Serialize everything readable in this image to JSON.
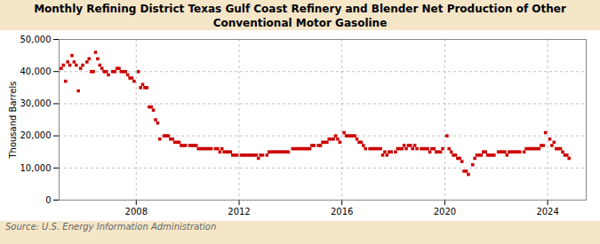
{
  "chart_data": {
    "type": "scatter",
    "title": "Monthly Refining District Texas Gulf Coast Refinery and Blender Net Production of Other\nConventional Motor Gasoline",
    "ylabel": "Thousand Barrels",
    "annotations": [
      "Source: U.S. Energy Information Administration"
    ],
    "color": "#cc0000",
    "marker": "square",
    "grid": true,
    "xlim": [
      2005.0,
      2025.5
    ],
    "xticks": [
      2008,
      2012,
      2016,
      2020,
      2024
    ],
    "ylim": [
      0,
      50000
    ],
    "yticks": [
      0,
      {
        "value": 10000,
        "label": "10,000"
      },
      {
        "value": 20000,
        "label": "20,000"
      },
      {
        "value": 30000,
        "label": "30,000"
      },
      {
        "value": 40000,
        "label": "40,000"
      },
      {
        "value": 50000,
        "label": "50,000"
      }
    ],
    "x": [
      2005.083,
      2005.167,
      2005.25,
      2005.333,
      2005.417,
      2005.5,
      2005.583,
      2005.667,
      2005.75,
      2005.833,
      2005.917,
      2006.083,
      2006.167,
      2006.25,
      2006.333,
      2006.417,
      2006.5,
      2006.583,
      2006.667,
      2006.75,
      2006.833,
      2006.917,
      2007.083,
      2007.167,
      2007.25,
      2007.333,
      2007.417,
      2007.5,
      2007.583,
      2007.667,
      2007.75,
      2007.833,
      2007.917,
      2008.083,
      2008.167,
      2008.25,
      2008.333,
      2008.417,
      2008.5,
      2008.583,
      2008.667,
      2008.75,
      2008.833,
      2008.917,
      2009.083,
      2009.167,
      2009.25,
      2009.333,
      2009.417,
      2009.5,
      2009.583,
      2009.667,
      2009.75,
      2009.833,
      2009.917,
      2010.083,
      2010.167,
      2010.25,
      2010.333,
      2010.417,
      2010.5,
      2010.583,
      2010.667,
      2010.75,
      2010.833,
      2010.917,
      2011.083,
      2011.167,
      2011.25,
      2011.333,
      2011.417,
      2011.5,
      2011.583,
      2011.667,
      2011.75,
      2011.833,
      2011.917,
      2012.083,
      2012.167,
      2012.25,
      2012.333,
      2012.417,
      2012.5,
      2012.583,
      2012.667,
      2012.75,
      2012.833,
      2012.917,
      2013.083,
      2013.167,
      2013.25,
      2013.333,
      2013.417,
      2013.5,
      2013.583,
      2013.667,
      2013.75,
      2013.833,
      2013.917,
      2014.083,
      2014.167,
      2014.25,
      2014.333,
      2014.417,
      2014.5,
      2014.583,
      2014.667,
      2014.75,
      2014.833,
      2014.917,
      2015.083,
      2015.167,
      2015.25,
      2015.333,
      2015.417,
      2015.5,
      2015.583,
      2015.667,
      2015.75,
      2015.833,
      2015.917,
      2016.083,
      2016.167,
      2016.25,
      2016.333,
      2016.417,
      2016.5,
      2016.583,
      2016.667,
      2016.75,
      2016.833,
      2016.917,
      2017.083,
      2017.167,
      2017.25,
      2017.333,
      2017.417,
      2017.5,
      2017.583,
      2017.667,
      2017.75,
      2017.833,
      2017.917,
      2018.083,
      2018.167,
      2018.25,
      2018.333,
      2018.417,
      2018.5,
      2018.583,
      2018.667,
      2018.75,
      2018.833,
      2018.917,
      2019.083,
      2019.167,
      2019.25,
      2019.333,
      2019.417,
      2019.5,
      2019.583,
      2019.667,
      2019.75,
      2019.833,
      2019.917,
      2020.083,
      2020.167,
      2020.25,
      2020.333,
      2020.417,
      2020.5,
      2020.583,
      2020.667,
      2020.75,
      2020.833,
      2020.917,
      2021.083,
      2021.167,
      2021.25,
      2021.333,
      2021.417,
      2021.5,
      2021.583,
      2021.667,
      2021.75,
      2021.833,
      2021.917,
      2022.083,
      2022.167,
      2022.25,
      2022.333,
      2022.417,
      2022.5,
      2022.583,
      2022.667,
      2022.75,
      2022.833,
      2022.917,
      2023.083,
      2023.167,
      2023.25,
      2023.333,
      2023.417,
      2023.5,
      2023.583,
      2023.667,
      2023.75,
      2023.833,
      2023.917,
      2024.083,
      2024.167,
      2024.25,
      2024.333,
      2024.417,
      2024.5,
      2024.583,
      2024.667,
      2024.75,
      2024.833
    ],
    "values": [
      41000,
      42000,
      37000,
      43000,
      42000,
      45000,
      43000,
      42000,
      34000,
      41000,
      42000,
      43000,
      44000,
      40000,
      40000,
      46000,
      44000,
      42000,
      41000,
      40000,
      40000,
      39000,
      40000,
      40000,
      41000,
      41000,
      40000,
      40000,
      40000,
      39000,
      38000,
      38000,
      37000,
      40000,
      35000,
      36000,
      35000,
      35000,
      29000,
      29000,
      28000,
      25000,
      24000,
      19000,
      20000,
      20000,
      20000,
      19000,
      19000,
      18000,
      18000,
      18000,
      17000,
      17000,
      17000,
      17000,
      17000,
      17000,
      17000,
      16000,
      16000,
      16000,
      16000,
      16000,
      16000,
      16000,
      16000,
      16000,
      15000,
      16000,
      15000,
      15000,
      15000,
      15000,
      14000,
      14000,
      14000,
      14000,
      14000,
      14000,
      14000,
      14000,
      14000,
      14000,
      14000,
      13000,
      14000,
      14000,
      14000,
      15000,
      15000,
      15000,
      15000,
      15000,
      15000,
      15000,
      15000,
      15000,
      15000,
      16000,
      16000,
      16000,
      16000,
      16000,
      16000,
      16000,
      16000,
      16000,
      17000,
      17000,
      17000,
      17000,
      18000,
      18000,
      18000,
      19000,
      19000,
      19000,
      20000,
      19000,
      18000,
      21000,
      20000,
      20000,
      20000,
      20000,
      20000,
      19000,
      18000,
      18000,
      17000,
      16000,
      16000,
      16000,
      16000,
      16000,
      16000,
      16000,
      14000,
      15000,
      14000,
      15000,
      15000,
      15000,
      16000,
      16000,
      16000,
      17000,
      16000,
      17000,
      17000,
      16000,
      17000,
      16000,
      16000,
      16000,
      16000,
      16000,
      15000,
      16000,
      16000,
      15000,
      15000,
      15000,
      16000,
      20000,
      16000,
      15000,
      14000,
      14000,
      13000,
      13000,
      12000,
      9000,
      9000,
      8000,
      11000,
      13000,
      14000,
      14000,
      14000,
      15000,
      15000,
      14000,
      14000,
      14000,
      14000,
      15000,
      15000,
      15000,
      15000,
      14000,
      15000,
      15000,
      15000,
      15000,
      15000,
      15000,
      15000,
      16000,
      16000,
      16000,
      16000,
      16000,
      16000,
      16000,
      17000,
      17000,
      21000,
      19000,
      17000,
      18000,
      16000,
      16000,
      16000,
      15000,
      14000,
      14000,
      13000
    ]
  }
}
